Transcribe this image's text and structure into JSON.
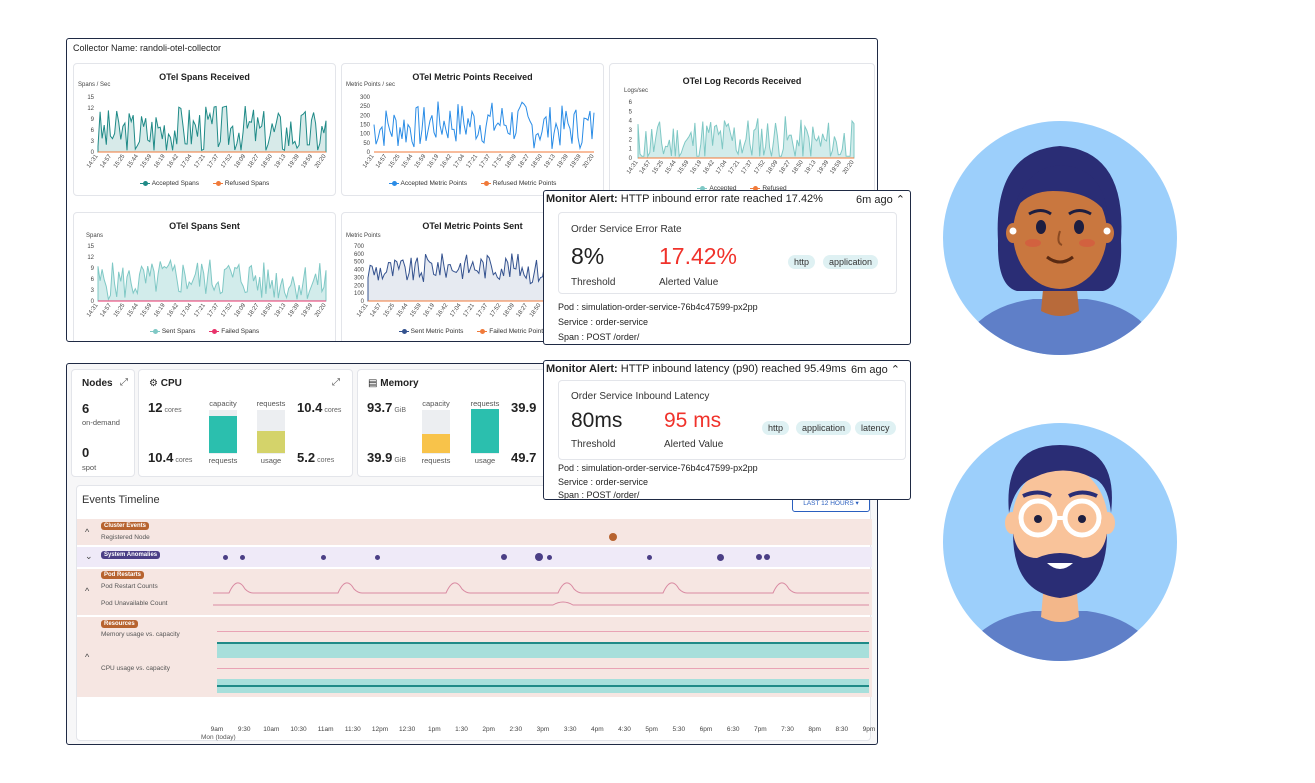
{
  "collector": {
    "name_label": "Collector Name: randoli-otel-collector",
    "x_ticks": [
      "14:31",
      "14:57",
      "15:25",
      "15:44",
      "15:59",
      "16:19",
      "16:42",
      "17:04",
      "17:21",
      "17:37",
      "17:52",
      "18:09",
      "18:27",
      "18:50",
      "19:13",
      "19:39",
      "19:59",
      "20:20"
    ],
    "charts": [
      {
        "title": "OTel Spans Received",
        "ylabel": "Spans / Sec",
        "yticks": [
          "15",
          "12",
          "9",
          "6",
          "3",
          "0"
        ],
        "legend": [
          "Accepted Spans",
          "Refused Spans"
        ]
      },
      {
        "title": "OTel Metric Points Received",
        "ylabel": "Metric Points / sec",
        "yticks": [
          "300",
          "250",
          "200",
          "150",
          "100",
          "50",
          "0"
        ],
        "legend": [
          "Accepted Metric Points",
          "Refused Metric Points"
        ]
      },
      {
        "title": "OTel Log Records Received",
        "ylabel": "Logs/sec",
        "yticks": [
          "6",
          "5",
          "4",
          "3",
          "2",
          "1",
          "0"
        ],
        "legend": [
          "Accepted",
          "Refused"
        ]
      },
      {
        "title": "OTel Spans Sent",
        "ylabel": "Spans",
        "yticks": [
          "15",
          "12",
          "9",
          "6",
          "3",
          "0"
        ],
        "legend": [
          "Sent Spans",
          "Failed Spans"
        ]
      },
      {
        "title": "OTel Metric Points Sent",
        "ylabel": "Metric Points",
        "yticks": [
          "700",
          "600",
          "500",
          "400",
          "300",
          "200",
          "100",
          "0"
        ],
        "legend": [
          "Sent Metric Points",
          "Failed Metric Points"
        ]
      }
    ]
  },
  "nodes": {
    "title": "Nodes",
    "on_demand_value": "6",
    "on_demand_label": "on-demand",
    "spot_value": "0",
    "spot_label": "spot"
  },
  "cpu": {
    "title": "CPU",
    "cap_value": "12",
    "cap_unit": "cores",
    "req_value": "10.4",
    "req_unit": "cores",
    "used_value": "10.4",
    "used_unit": "cores",
    "req2_value": "5.2",
    "req2_unit": "cores",
    "col1_top": "capacity",
    "col1_bottom": "requests",
    "col2_top": "requests",
    "col2_bottom": "usage",
    "capacity_fill": 0.85,
    "usage_fill": 0.5
  },
  "memory": {
    "title": "Memory",
    "cap_value": "93.7",
    "cap_unit": "GiB",
    "req_value": "39.9",
    "req_unit": "",
    "used_value": "39.9",
    "used_unit": "GiB",
    "req2_value": "49.7",
    "req2_unit": "",
    "col1_top": "capacity",
    "col1_bottom": "requests",
    "col2_top": "requests",
    "col2_bottom": "usage",
    "capacity_fill": 0.43,
    "usage_fill": 1.0
  },
  "timeline": {
    "title": "Events Timeline",
    "range_label": "LAST 12 HOURS",
    "cluster_events": "Cluster Events",
    "registered_node": "Registered Node",
    "system_anomalies": "System Anomalies",
    "pod_restarts": "Pod Restarts",
    "pod_restart_counts": "Pod Restart Counts",
    "pod_unavailable_count": "Pod Unavailable Count",
    "resources": "Resources",
    "memory_usage": "Memory usage vs. capacity",
    "cpu_usage": "CPU usage vs. capacity",
    "date_label": "Mon (today)",
    "ticks": [
      "9am",
      "9:30",
      "10am",
      "10:30",
      "11am",
      "11:30",
      "12pm",
      "12:30",
      "1pm",
      "1:30",
      "2pm",
      "2:30",
      "3pm",
      "3:30",
      "4pm",
      "4:30",
      "5pm",
      "5:30",
      "6pm",
      "6:30",
      "7pm",
      "7:30",
      "8pm",
      "8:30",
      "9pm"
    ]
  },
  "alert1": {
    "title_prefix": "Monitor Alert:",
    "title_text": "HTTP inbound error rate reached 17.42%",
    "ago": "6m ago",
    "service_title": "Order Service Error Rate",
    "threshold_value": "8%",
    "threshold_label": "Threshold",
    "alerted_value": "17.42%",
    "alerted_label": "Alerted Value",
    "chips": [
      "http",
      "application"
    ],
    "pod": "Pod : simulation-order-service-76b4c47599-px2pp",
    "service": "Service : order-service",
    "span": "Span : POST /order/"
  },
  "alert2": {
    "title_prefix": "Monitor Alert:",
    "title_text": "HTTP inbound latency (p90) reached 95.49ms",
    "ago": "6m ago",
    "service_title": "Order Service Inbound Latency",
    "threshold_value": "80ms",
    "threshold_label": "Threshold",
    "alerted_value": "95 ms",
    "alerted_label": "Alerted Value",
    "chips": [
      "http",
      "application",
      "latency"
    ],
    "pod": "Pod : simulation-order-service-76b4c47599-px2pp",
    "service": "Service : order-service",
    "span": "Span : POST /order/"
  },
  "colors": {
    "teal": "#1f8a87",
    "blue": "#2a8ce6",
    "navy": "#34528f",
    "red": "#f0322b",
    "orange": "#f07a3a"
  }
}
